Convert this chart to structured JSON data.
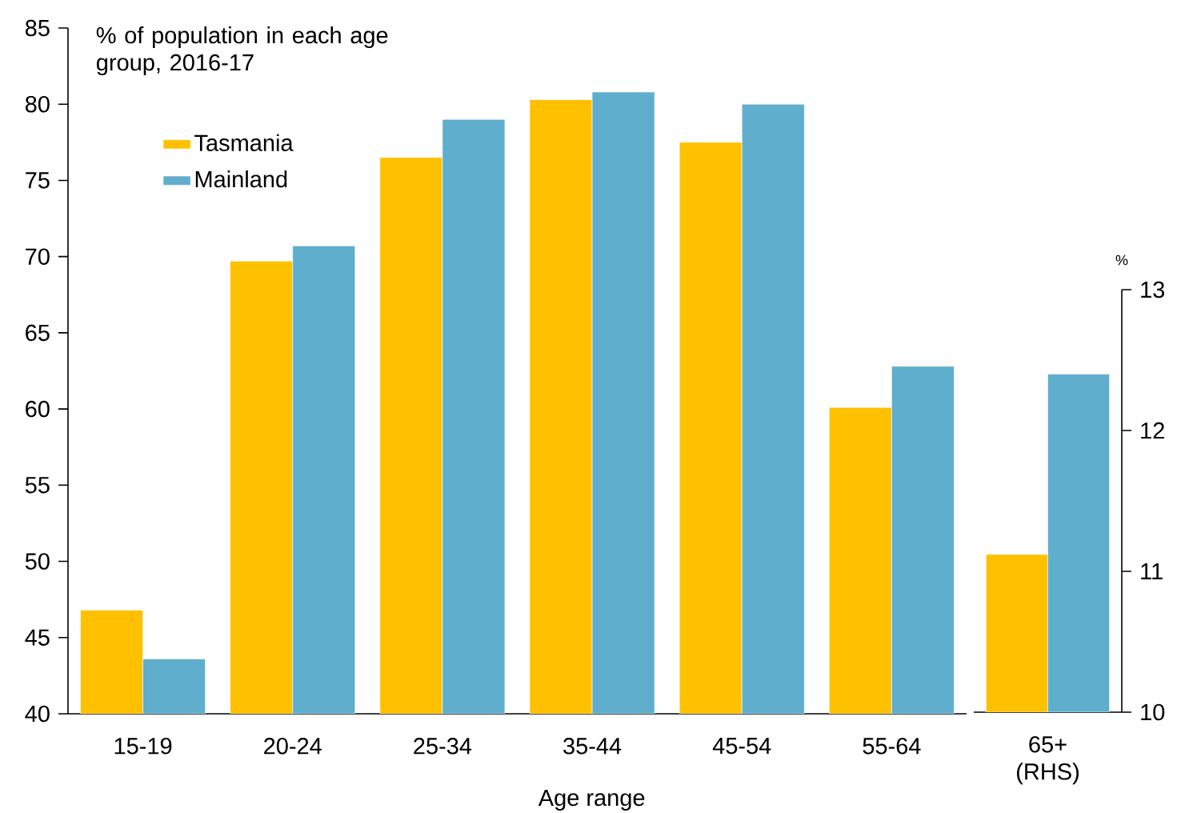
{
  "chart_data": [
    {
      "type": "bar",
      "title": "% of population in each age group, 2016-17",
      "xlabel": "Age range",
      "categories": [
        "15-19",
        "20-24",
        "25-34",
        "35-44",
        "45-54",
        "55-64"
      ],
      "series": [
        {
          "name": "Tasmania",
          "color": "#ffc000",
          "values": [
            46.8,
            69.7,
            76.5,
            80.3,
            77.5,
            60.1
          ]
        },
        {
          "name": "Mainland",
          "color": "#60aecd",
          "values": [
            43.6,
            70.7,
            79.0,
            80.8,
            80.0,
            62.8
          ]
        }
      ],
      "ylim": [
        40,
        85
      ],
      "yticks": [
        40,
        45,
        50,
        55,
        60,
        65,
        70,
        75,
        80,
        85
      ],
      "legend": "top left"
    },
    {
      "type": "bar",
      "ylabel": "%",
      "categories": [
        "65+ (RHS)"
      ],
      "series": [
        {
          "color": "#ffc000",
          "values": [
            11.12
          ]
        },
        {
          "color": "#60aecd",
          "values": [
            12.4
          ]
        }
      ],
      "ylim": [
        10,
        13
      ],
      "yticks": [
        10,
        11,
        12,
        13
      ]
    }
  ]
}
